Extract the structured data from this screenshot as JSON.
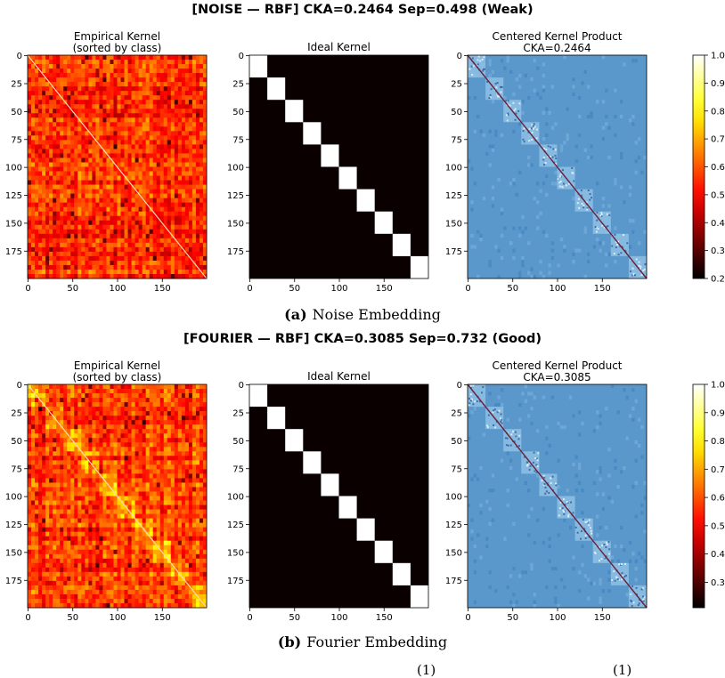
{
  "figures": [
    {
      "id": "noise",
      "suptitle": "[NOISE — RBF]  CKA=0.2464  Sep=0.498  (Weak)",
      "caption_label": "(a)",
      "caption_text": "Noise Embedding",
      "panels": [
        {
          "kind": "empirical",
          "title": [
            "Empirical Kernel",
            "(sorted by class)"
          ]
        },
        {
          "kind": "ideal",
          "title": [
            "Ideal Kernel"
          ]
        },
        {
          "kind": "centered",
          "title": [
            "Centered Kernel Product",
            "CKA=0.2464"
          ]
        }
      ],
      "colorbar": {
        "min": 0.2,
        "max": 1.0,
        "ticks": [
          "0.2",
          "0.3",
          "0.4",
          "0.5",
          "0.6",
          "0.7",
          "0.8",
          "0.9",
          "1.0"
        ],
        "tick_values": [
          0.2,
          0.3,
          0.4,
          0.5,
          0.6,
          0.7,
          0.8,
          0.9,
          1.0
        ]
      }
    },
    {
      "id": "fourier",
      "suptitle": "[FOURIER — RBF]  CKA=0.3085  Sep=0.732  (Good)",
      "caption_label": "(b)",
      "caption_text": "Fourier Embedding",
      "panels": [
        {
          "kind": "empirical",
          "title": [
            "Empirical Kernel",
            "(sorted by class)"
          ]
        },
        {
          "kind": "ideal",
          "title": [
            "Ideal Kernel"
          ]
        },
        {
          "kind": "centered",
          "title": [
            "Centered Kernel Product",
            "CKA=0.3085"
          ]
        }
      ],
      "colorbar": {
        "min": 0.21,
        "max": 1.0,
        "ticks": [
          "0.3",
          "0.4",
          "0.5",
          "0.6",
          "0.7",
          "0.8",
          "0.9",
          "1.0"
        ],
        "tick_values": [
          0.3,
          0.4,
          0.5,
          0.6,
          0.7,
          0.8,
          0.9,
          1.0
        ]
      }
    }
  ],
  "chart_data": [
    {
      "type": "heatmap",
      "title": "[NOISE — RBF]  CKA=0.2464  Sep=0.498  (Weak)",
      "panels": [
        "Empirical Kernel (sorted by class)",
        "Ideal Kernel",
        "Centered Kernel Product CKA=0.2464"
      ],
      "matrix_size": 200,
      "num_classes": 10,
      "class_size": 20,
      "x_ticks": [
        0,
        50,
        100,
        150
      ],
      "y_ticks": [
        0,
        25,
        50,
        75,
        100,
        125,
        150,
        175
      ],
      "colorbar_range": [
        0.2,
        1.0
      ],
      "colormap": "hot"
    },
    {
      "type": "heatmap",
      "title": "[FOURIER — RBF]  CKA=0.3085  Sep=0.732  (Good)",
      "panels": [
        "Empirical Kernel (sorted by class)",
        "Ideal Kernel",
        "Centered Kernel Product CKA=0.3085"
      ],
      "matrix_size": 200,
      "num_classes": 10,
      "class_size": 20,
      "x_ticks": [
        0,
        50,
        100,
        150
      ],
      "y_ticks": [
        0,
        25,
        50,
        75,
        100,
        125,
        150,
        175
      ],
      "colorbar_range": [
        0.21,
        1.0
      ],
      "colormap": "hot"
    }
  ],
  "footer": {
    "fragments": [
      "(1)",
      "(1)"
    ]
  }
}
